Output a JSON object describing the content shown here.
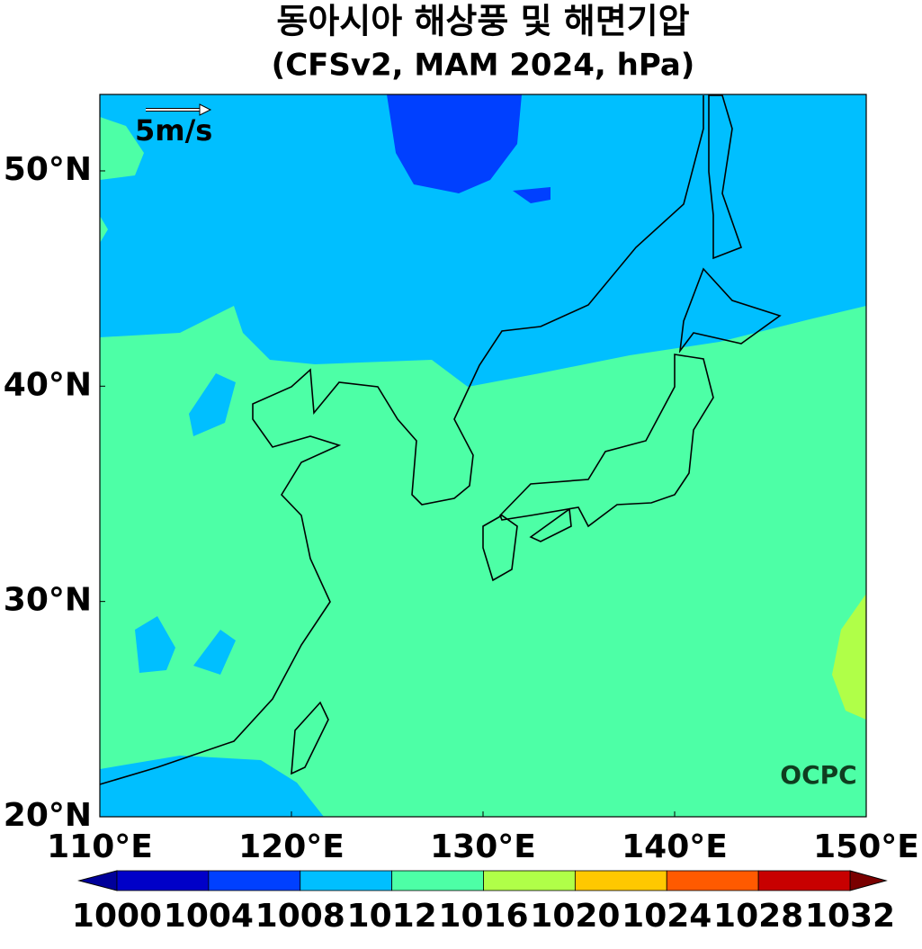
{
  "header": {
    "title": "동아시아 해상풍 및 해면기압",
    "subtitle": "(CFSv2, MAM 2024, hPa)"
  },
  "map": {
    "lonlim": [
      110,
      150
    ],
    "latlim": [
      20,
      53.55
    ],
    "xticks": [
      {
        "value": 110,
        "label": "110°E"
      },
      {
        "value": 120,
        "label": "120°E"
      },
      {
        "value": 130,
        "label": "130°E"
      },
      {
        "value": 140,
        "label": "140°E"
      },
      {
        "value": 150,
        "label": "150°E"
      }
    ],
    "yticks": [
      {
        "value": 20,
        "label": "20°N"
      },
      {
        "value": 30,
        "label": "30°N"
      },
      {
        "value": 40,
        "label": "40°N"
      },
      {
        "value": 50,
        "label": "50°N"
      }
    ],
    "reference_vector_label": "5m/s",
    "watermark": "OCPC"
  },
  "colorbar": {
    "levels": [
      1000,
      1004,
      1008,
      1012,
      1016,
      1020,
      1024,
      1028,
      1032
    ],
    "colors": [
      "#0000c8",
      "#0040ff",
      "#00bfff",
      "#4dffa6",
      "#b0ff48",
      "#ffc800",
      "#ff5a00",
      "#c80000"
    ],
    "extend_colors": [
      "#00009a",
      "#7a0000"
    ]
  }
}
